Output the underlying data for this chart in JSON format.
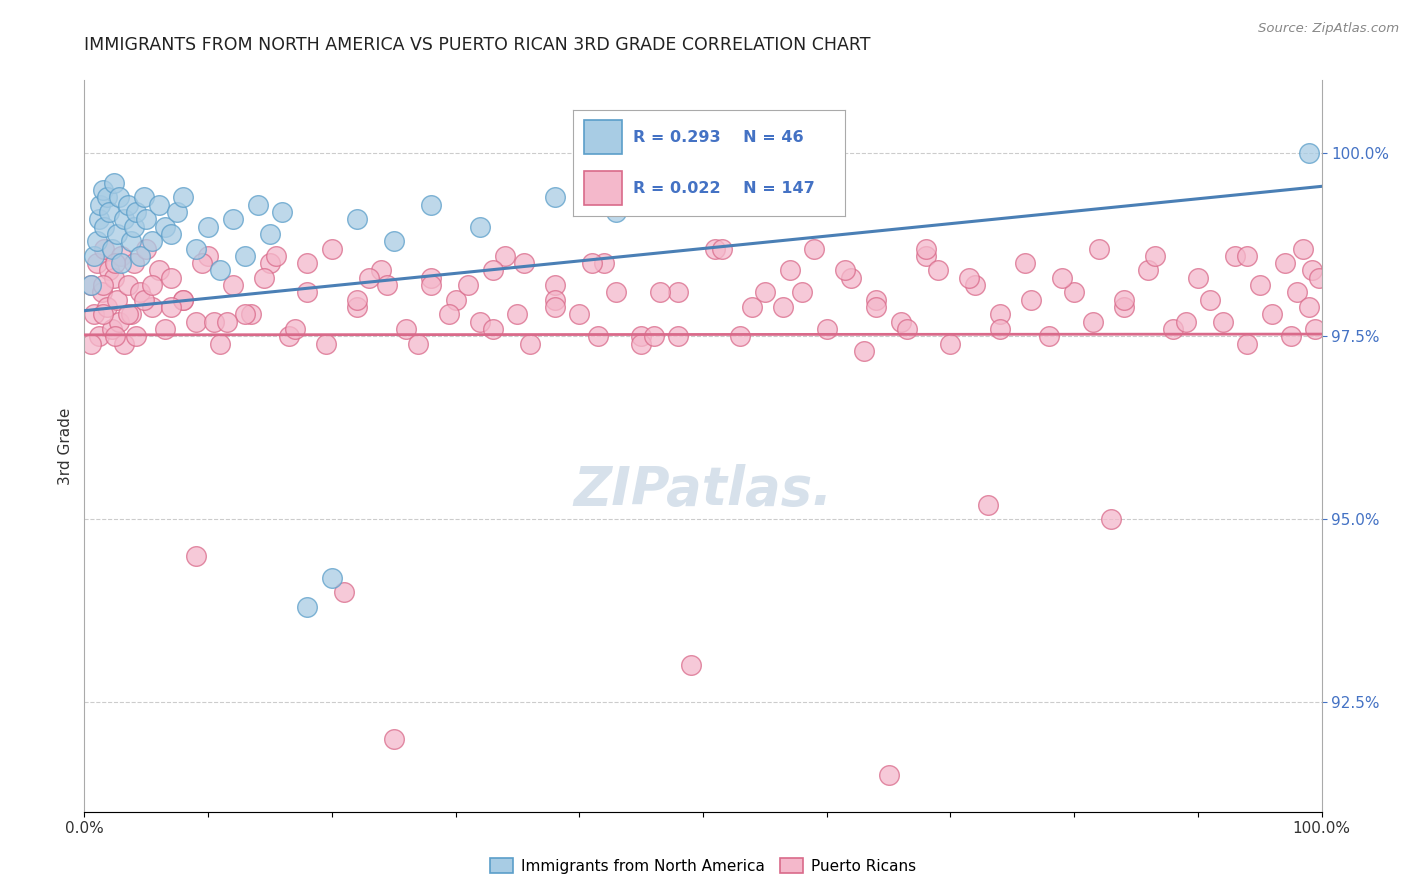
{
  "title": "IMMIGRANTS FROM NORTH AMERICA VS PUERTO RICAN 3RD GRADE CORRELATION CHART",
  "source": "Source: ZipAtlas.com",
  "ylabel": "3rd Grade",
  "ylabel_right_ticks": [
    92.5,
    95.0,
    97.5,
    100.0
  ],
  "ylabel_right_labels": [
    "92.5%",
    "95.0%",
    "97.5%",
    "100.0%"
  ],
  "xlim": [
    0.0,
    1.0
  ],
  "ylim": [
    91.0,
    101.0
  ],
  "legend_blue_label": "Immigrants from North America",
  "legend_pink_label": "Puerto Ricans",
  "R_blue": 0.293,
  "N_blue": 46,
  "R_pink": 0.022,
  "N_pink": 147,
  "blue_color": "#a8cce4",
  "blue_edge": "#5b9ec9",
  "pink_color": "#f4b8cb",
  "pink_edge": "#d96a8a",
  "blue_line_color": "#4a7fb5",
  "pink_line_color": "#d96a8a",
  "blue_trend_x": [
    0.0,
    1.0
  ],
  "blue_trend_y": [
    97.85,
    99.55
  ],
  "pink_trend_x": [
    0.0,
    1.0
  ],
  "pink_trend_y": [
    97.52,
    97.53
  ],
  "blue_scatter_x": [
    0.005,
    0.008,
    0.01,
    0.012,
    0.013,
    0.015,
    0.016,
    0.018,
    0.02,
    0.022,
    0.024,
    0.026,
    0.028,
    0.03,
    0.032,
    0.035,
    0.038,
    0.04,
    0.042,
    0.045,
    0.048,
    0.05,
    0.055,
    0.06,
    0.065,
    0.07,
    0.075,
    0.08,
    0.09,
    0.1,
    0.11,
    0.12,
    0.13,
    0.14,
    0.15,
    0.16,
    0.18,
    0.2,
    0.22,
    0.25,
    0.28,
    0.32,
    0.38,
    0.43,
    0.51,
    0.99
  ],
  "blue_scatter_y": [
    98.2,
    98.6,
    98.8,
    99.1,
    99.3,
    99.5,
    99.0,
    99.4,
    99.2,
    98.7,
    99.6,
    98.9,
    99.4,
    98.5,
    99.1,
    99.3,
    98.8,
    99.0,
    99.2,
    98.6,
    99.4,
    99.1,
    98.8,
    99.3,
    99.0,
    98.9,
    99.2,
    99.4,
    98.7,
    99.0,
    98.4,
    99.1,
    98.6,
    99.3,
    98.9,
    99.2,
    93.8,
    94.2,
    99.1,
    98.8,
    99.3,
    99.0,
    99.4,
    99.2,
    99.6,
    100.0
  ],
  "pink_scatter_x": [
    0.005,
    0.008,
    0.01,
    0.012,
    0.014,
    0.016,
    0.018,
    0.02,
    0.022,
    0.024,
    0.026,
    0.028,
    0.03,
    0.032,
    0.035,
    0.038,
    0.04,
    0.042,
    0.045,
    0.05,
    0.055,
    0.06,
    0.065,
    0.07,
    0.08,
    0.09,
    0.1,
    0.11,
    0.12,
    0.135,
    0.15,
    0.165,
    0.18,
    0.2,
    0.22,
    0.24,
    0.26,
    0.28,
    0.3,
    0.32,
    0.34,
    0.36,
    0.38,
    0.4,
    0.42,
    0.45,
    0.48,
    0.51,
    0.54,
    0.57,
    0.6,
    0.62,
    0.64,
    0.66,
    0.68,
    0.7,
    0.72,
    0.74,
    0.76,
    0.78,
    0.8,
    0.82,
    0.84,
    0.86,
    0.88,
    0.9,
    0.91,
    0.92,
    0.93,
    0.94,
    0.95,
    0.96,
    0.97,
    0.975,
    0.98,
    0.985,
    0.99,
    0.992,
    0.995,
    0.998,
    0.048,
    0.105,
    0.155,
    0.195,
    0.245,
    0.295,
    0.355,
    0.415,
    0.465,
    0.515,
    0.565,
    0.615,
    0.665,
    0.715,
    0.765,
    0.815,
    0.865,
    0.45,
    0.38,
    0.28,
    0.18,
    0.13,
    0.23,
    0.33,
    0.53,
    0.43,
    0.63,
    0.33,
    0.08,
    0.015,
    0.025,
    0.055,
    0.07,
    0.095,
    0.115,
    0.145,
    0.17,
    0.22,
    0.27,
    0.31,
    0.35,
    0.41,
    0.46,
    0.55,
    0.59,
    0.64,
    0.69,
    0.74,
    0.79,
    0.84,
    0.89,
    0.94,
    0.005,
    0.015,
    0.035,
    0.025,
    0.48,
    0.58,
    0.68,
    0.38,
    0.09,
    0.21,
    0.73,
    0.83,
    0.49,
    0.65,
    0.25
  ],
  "pink_scatter_y": [
    98.2,
    97.8,
    98.5,
    97.5,
    98.1,
    98.7,
    97.9,
    98.4,
    97.6,
    98.3,
    98.0,
    97.7,
    98.6,
    97.4,
    98.2,
    97.8,
    98.5,
    97.5,
    98.1,
    98.7,
    97.9,
    98.4,
    97.6,
    98.3,
    98.0,
    97.7,
    98.6,
    97.4,
    98.2,
    97.8,
    98.5,
    97.5,
    98.1,
    98.7,
    97.9,
    98.4,
    97.6,
    98.3,
    98.0,
    97.7,
    98.6,
    97.4,
    98.2,
    97.8,
    98.5,
    97.5,
    98.1,
    98.7,
    97.9,
    98.4,
    97.6,
    98.3,
    98.0,
    97.7,
    98.6,
    97.4,
    98.2,
    97.8,
    98.5,
    97.5,
    98.1,
    98.7,
    97.9,
    98.4,
    97.6,
    98.3,
    98.0,
    97.7,
    98.6,
    97.4,
    98.2,
    97.8,
    98.5,
    97.5,
    98.1,
    98.7,
    97.9,
    98.4,
    97.6,
    98.3,
    98.0,
    97.7,
    98.6,
    97.4,
    98.2,
    97.8,
    98.5,
    97.5,
    98.1,
    98.7,
    97.9,
    98.4,
    97.6,
    98.3,
    98.0,
    97.7,
    98.6,
    97.4,
    98.0,
    98.2,
    98.5,
    97.8,
    98.3,
    97.6,
    97.5,
    98.1,
    97.3,
    98.4,
    98.0,
    97.8,
    97.5,
    98.2,
    97.9,
    98.5,
    97.7,
    98.3,
    97.6,
    98.0,
    97.4,
    98.2,
    97.8,
    98.5,
    97.5,
    98.1,
    98.7,
    97.9,
    98.4,
    97.6,
    98.3,
    98.0,
    97.7,
    98.6,
    97.4,
    98.2,
    97.8,
    98.5,
    97.5,
    98.1,
    98.7,
    97.9,
    94.5,
    94.0,
    95.2,
    95.0,
    93.0,
    91.5,
    92.0
  ]
}
